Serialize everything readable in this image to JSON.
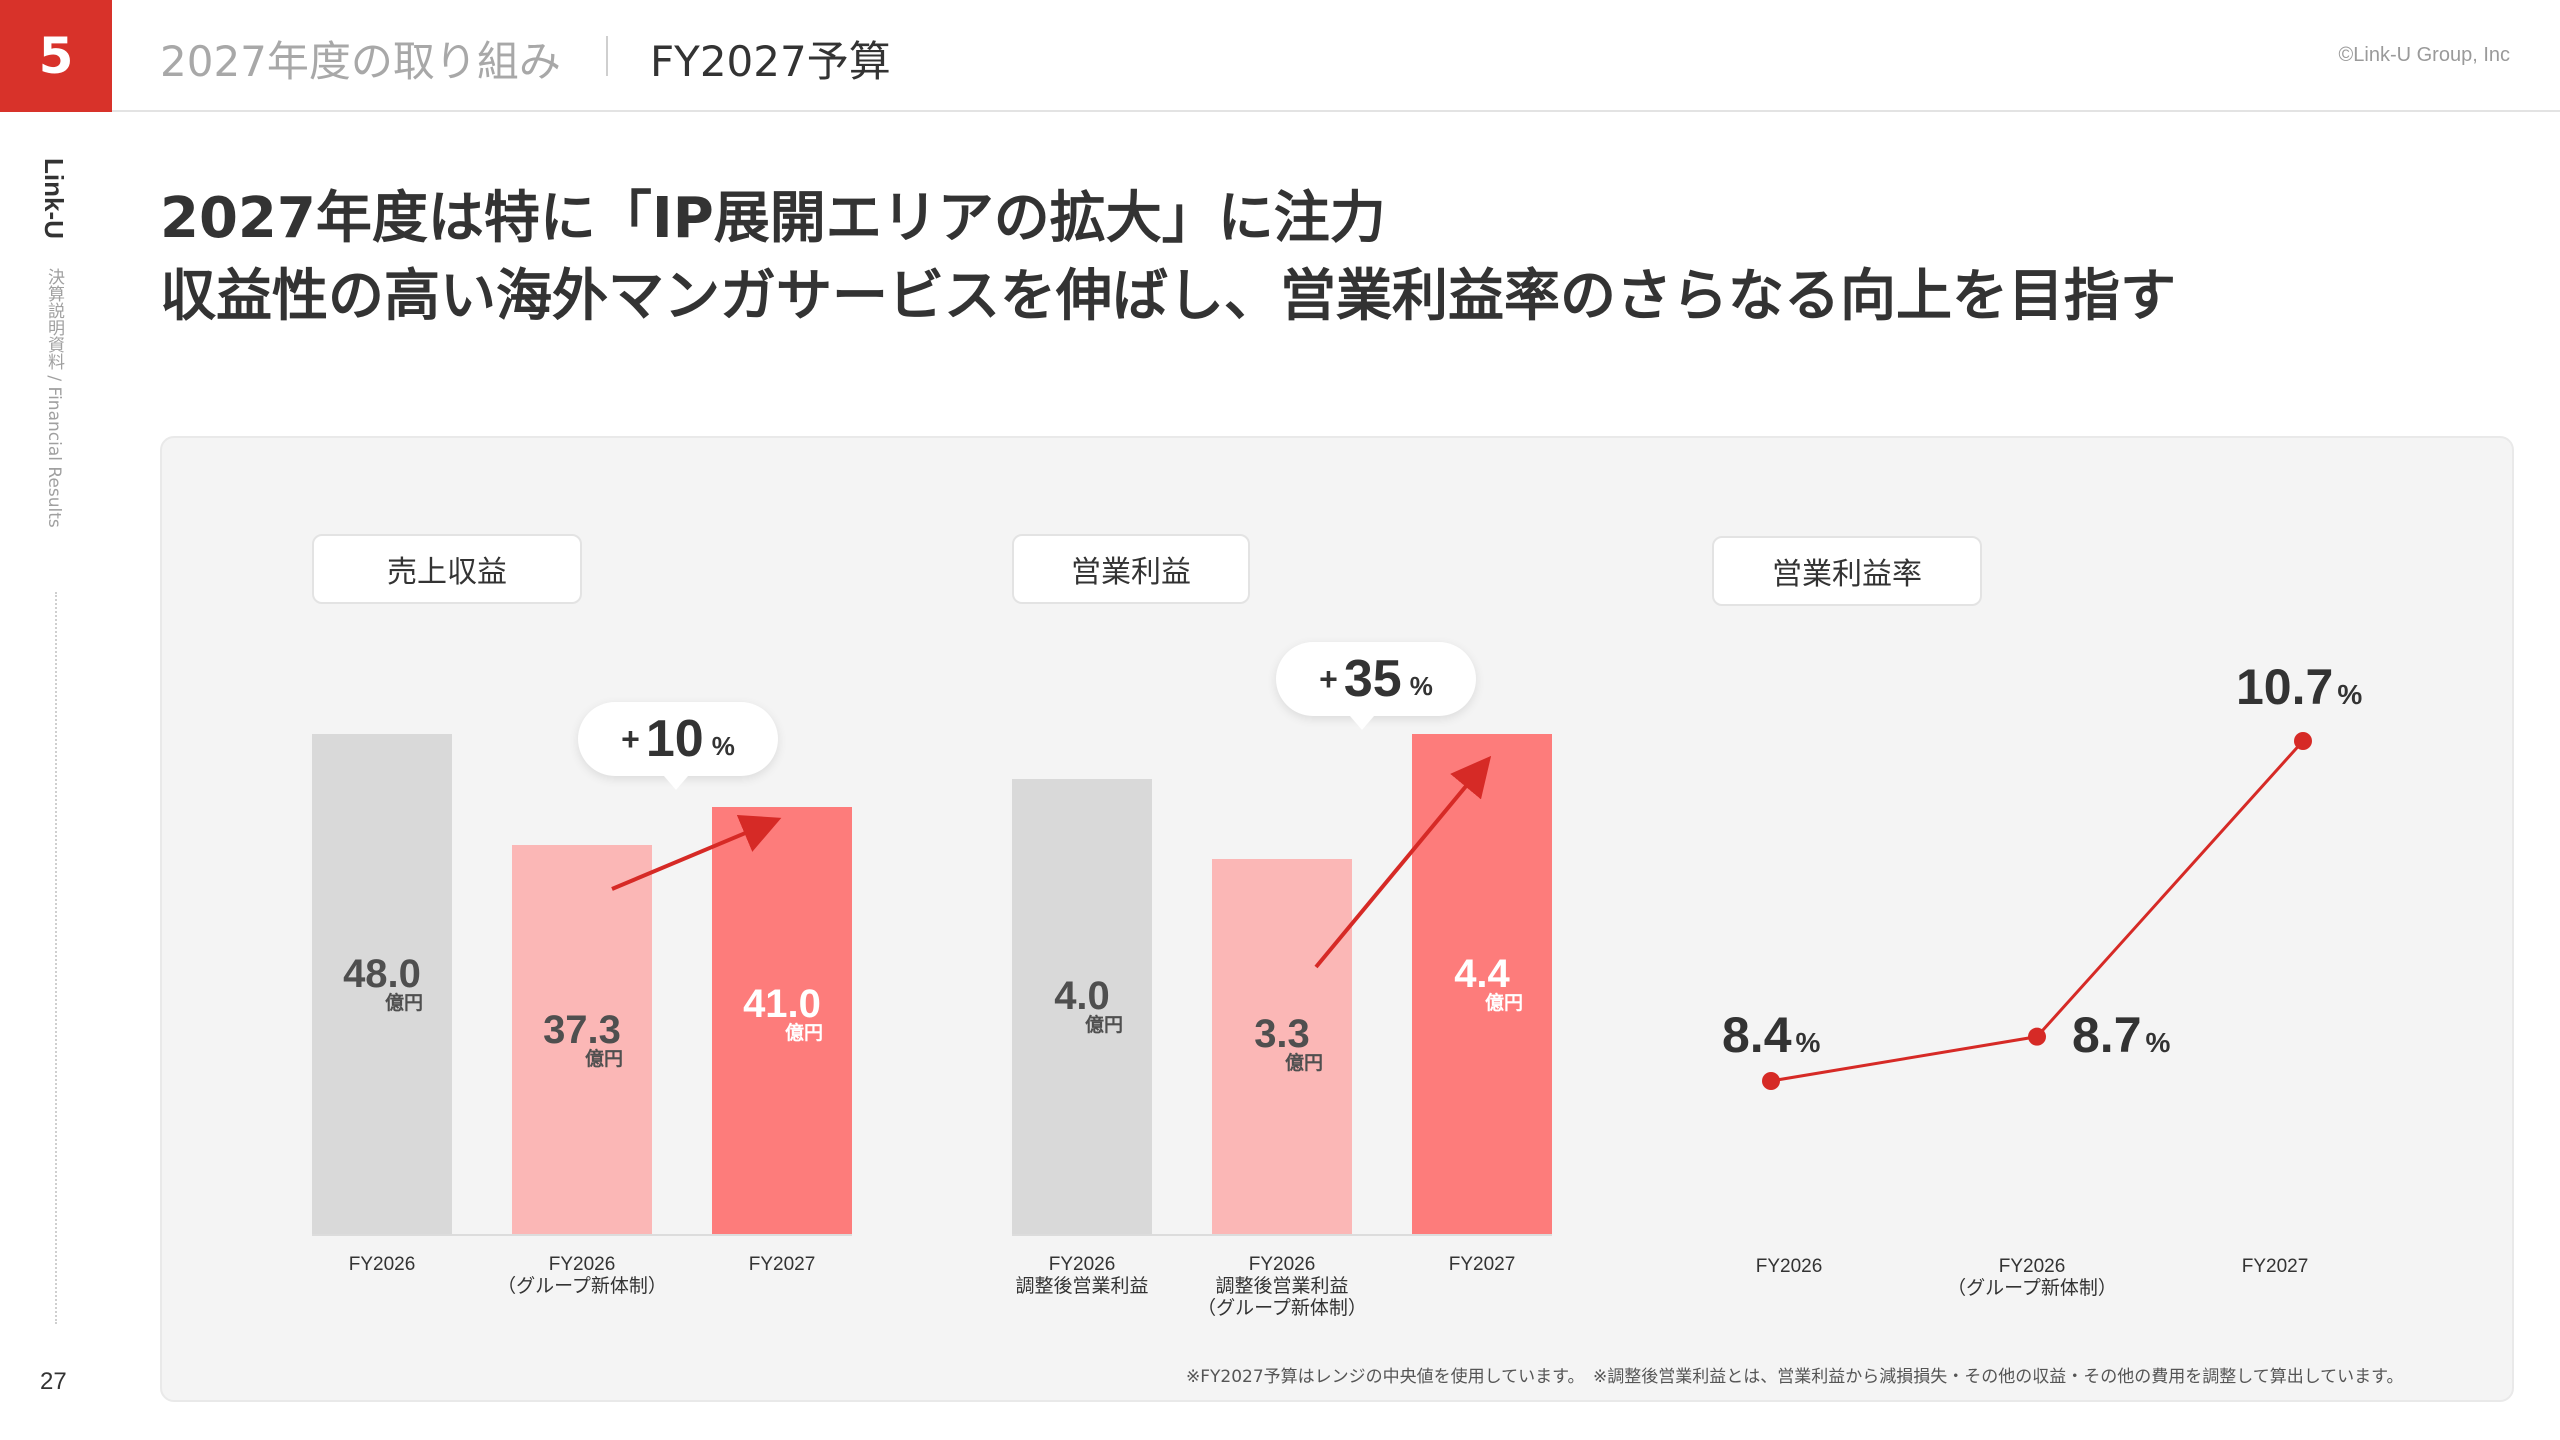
{
  "header": {
    "section_number": "5",
    "breadcrumb": "2027年度の取り組み",
    "current": "FY2027予算",
    "copyright": "©Link-U Group, Inc"
  },
  "sidebar": {
    "brand": "Link-U",
    "subtitle": "決算説明資料 / Financial Results"
  },
  "page_number": "27",
  "headline": {
    "line1": "2027年度は特に「IP展開エリアの拡大」に注力",
    "line2": "収益性の高い海外マンガサービスを伸ばし、営業利益率のさらなる向上を目指す"
  },
  "footnote": "※FY2027予算はレンジの中央値を使用しています。　※調整後営業利益とは、営業利益から減損損失・その他の収益・その他の費用を調整して算出しています。",
  "colors": {
    "accent": "#d8322a",
    "bar_gray": "#d9d9d9",
    "bar_light": "#fbb7b6",
    "bar_red": "#fd7c7b",
    "arrow": "#d62a26"
  },
  "chart_data": [
    {
      "type": "bar",
      "title": "売上収益",
      "unit": "億円",
      "categories": [
        "FY2026",
        "FY2026\n（グループ新体制）",
        "FY2027"
      ],
      "values": [
        48.0,
        37.3,
        41.0
      ],
      "value_labels": [
        "48.0",
        "37.3",
        "41.0"
      ],
      "growth": {
        "plus": "+",
        "value": "10",
        "pct": "%"
      },
      "ylim": [
        0,
        48.0
      ]
    },
    {
      "type": "bar",
      "title": "営業利益",
      "unit": "億円",
      "categories": [
        "FY2026\n調整後営業利益",
        "FY2026\n調整後営業利益\n（グループ新体制）",
        "FY2027"
      ],
      "values": [
        4.0,
        3.3,
        4.4
      ],
      "value_labels": [
        "4.0",
        "3.3",
        "4.4"
      ],
      "growth": {
        "plus": "+",
        "value": "35",
        "pct": "%"
      },
      "ylim": [
        0,
        4.4
      ]
    },
    {
      "type": "line",
      "title": "営業利益率",
      "unit": "%",
      "categories": [
        "FY2026",
        "FY2026\n（グループ新体制）",
        "FY2027"
      ],
      "values": [
        8.4,
        8.7,
        10.7
      ],
      "value_labels": [
        "8.4",
        "8.7",
        "10.7"
      ],
      "ylim": [
        8.4,
        10.7
      ]
    }
  ]
}
